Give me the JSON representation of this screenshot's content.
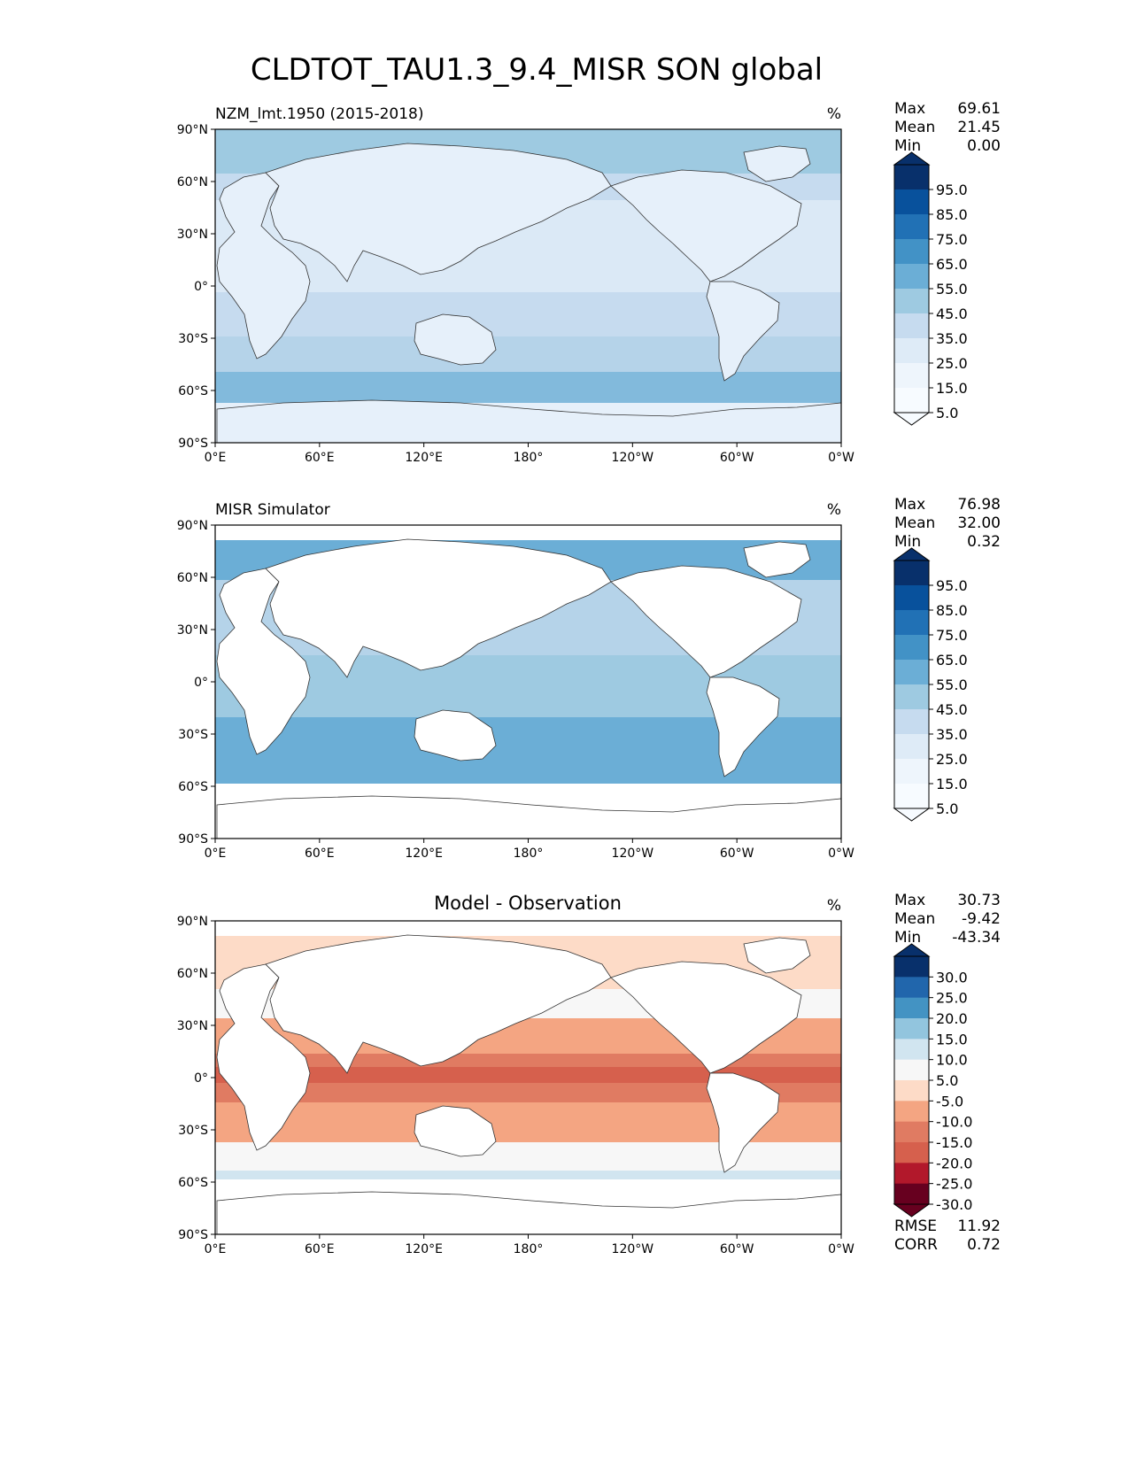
{
  "title": "CLDTOT_TAU1.3_9.4_MISR SON global",
  "panels": [
    {
      "id": "model",
      "left_title": "NZM_lmt.1950 (2015-2018)",
      "center_title": "",
      "units": "%",
      "stats": [
        {
          "label": "Max",
          "value": "69.61"
        },
        {
          "label": "Mean",
          "value": "21.45"
        },
        {
          "label": "Min",
          "value": "0.00"
        }
      ],
      "colorbar": {
        "ticks": [
          "95.0",
          "85.0",
          "75.0",
          "65.0",
          "55.0",
          "45.0",
          "35.0",
          "25.0",
          "15.0",
          "5.0"
        ],
        "colors": [
          "#08306b",
          "#08519c",
          "#2171b5",
          "#4292c6",
          "#6baed6",
          "#9ecae1",
          "#c6dbef",
          "#deebf7",
          "#eef5fc",
          "#f7fbff"
        ]
      },
      "footer_stats": []
    },
    {
      "id": "obs",
      "left_title": "MISR Simulator",
      "center_title": "",
      "units": "%",
      "stats": [
        {
          "label": "Max",
          "value": "76.98"
        },
        {
          "label": "Mean",
          "value": "32.00"
        },
        {
          "label": "Min",
          "value": "0.32"
        }
      ],
      "colorbar": {
        "ticks": [
          "95.0",
          "85.0",
          "75.0",
          "65.0",
          "55.0",
          "45.0",
          "35.0",
          "25.0",
          "15.0",
          "5.0"
        ],
        "colors": [
          "#08306b",
          "#08519c",
          "#2171b5",
          "#4292c6",
          "#6baed6",
          "#9ecae1",
          "#c6dbef",
          "#deebf7",
          "#eef5fc",
          "#f7fbff"
        ]
      },
      "footer_stats": []
    },
    {
      "id": "diff",
      "left_title": "",
      "center_title": "Model - Observation",
      "units": "%",
      "stats": [
        {
          "label": "Max",
          "value": "30.73"
        },
        {
          "label": "Mean",
          "value": "-9.42"
        },
        {
          "label": "Min",
          "value": "-43.34"
        }
      ],
      "colorbar": {
        "ticks": [
          "30.0",
          "25.0",
          "20.0",
          "15.0",
          "10.0",
          "5.0",
          "-5.0",
          "-10.0",
          "-15.0",
          "-20.0",
          "-25.0",
          "-30.0"
        ],
        "colors": [
          "#08306b",
          "#2166ac",
          "#4393c3",
          "#92c5de",
          "#d1e5f0",
          "#f7f7f7",
          "#fddbc7",
          "#f4a582",
          "#e07b62",
          "#d6604d",
          "#b2182b",
          "#67001f"
        ]
      },
      "footer_stats": [
        {
          "label": "RMSE",
          "value": "11.92"
        },
        {
          "label": "CORR",
          "value": "0.72"
        }
      ]
    }
  ],
  "axes": {
    "lat_labels": [
      "90°N",
      "60°N",
      "30°N",
      "0°",
      "30°S",
      "60°S",
      "90°S"
    ],
    "lon_labels": [
      "0°E",
      "60°E",
      "120°E",
      "180°",
      "120°W",
      "60°W",
      "0°W"
    ]
  },
  "colors": {
    "ocean_light": "#dbe9f6",
    "ocean_mid": "#b5d3e9",
    "ocean_dark": "#6baed6",
    "land_model": "#eef5fc",
    "diff_red": "#e07b62",
    "diff_dark": "#b2182b",
    "diff_light": "#fddbc7",
    "diff_neutral": "#f7f7f7",
    "diff_blue": "#d1e5f0"
  }
}
